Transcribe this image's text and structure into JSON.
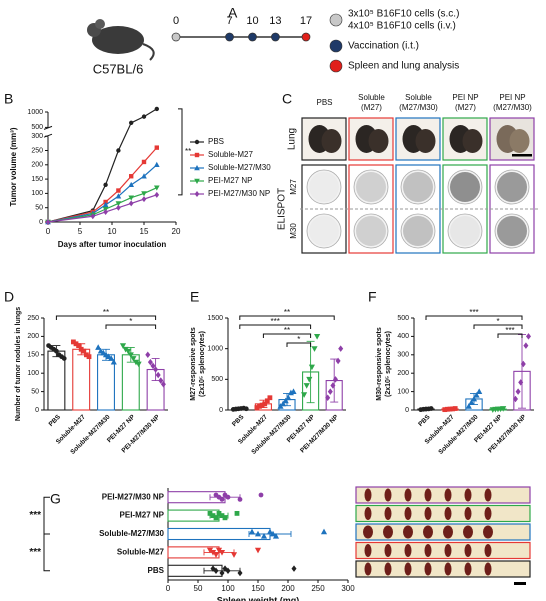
{
  "schematic": {
    "panel_label": "A",
    "strain": "C57BL/6",
    "days": [
      0,
      7,
      10,
      13,
      17
    ],
    "day_colors": [
      "#c8c8c8",
      "#1f3a68",
      "#1f3a68",
      "#1f3a68",
      "#e0201b"
    ],
    "legend": [
      {
        "lines": [
          "3x10⁵ B16F10 cells (s.c.)",
          "4x10⁵ B16F10 cells (i.v.)"
        ],
        "color": "#c8c8c8"
      },
      {
        "lines": [
          "Vaccination (i.t.)"
        ],
        "color": "#1f3a68"
      },
      {
        "lines": [
          "Spleen and lung analysis"
        ],
        "color": "#e0201b"
      }
    ]
  },
  "image_grid": {
    "panel_label": "C",
    "columns": [
      [
        "PBS"
      ],
      [
        "Soluble",
        "(M27)"
      ],
      [
        "Soluble",
        "(M27/M30)"
      ],
      [
        "PEI NP",
        "(M27)"
      ],
      [
        "PEI NP",
        "(M27/M30)"
      ]
    ],
    "column_colors": [
      "#222222",
      "#e53935",
      "#1e73be",
      "#2ea84a",
      "#8e3fa8"
    ],
    "rows": [
      "Lung",
      "ELISPOT"
    ],
    "sub_rows": [
      "M27",
      "M30"
    ]
  },
  "chart_data": [
    {
      "type": "line",
      "panel_label": "B",
      "x_label": "Days after tumor inoculation",
      "y_label": [
        "Tumor volume (mm³)"
      ],
      "x": [
        0,
        7,
        9,
        11,
        13,
        15,
        17
      ],
      "xlim": [
        0,
        20
      ],
      "xticks": [
        0,
        5,
        10,
        15,
        20
      ],
      "ylim": [
        0,
        1000
      ],
      "ybreak": [
        300,
        500
      ],
      "yticks": [
        0,
        50,
        100,
        150,
        200,
        250,
        300,
        500,
        1000
      ],
      "significance": [
        "**"
      ],
      "series": [
        {
          "name": "PBS",
          "color": "#222222",
          "values": [
            0,
            40,
            130,
            250,
            650,
            850,
            1100
          ]
        },
        {
          "name": "Soluble-M27",
          "color": "#e53935",
          "values": [
            0,
            35,
            70,
            110,
            160,
            210,
            260
          ]
        },
        {
          "name": "Soluble-M27/M30",
          "color": "#1e73be",
          "values": [
            0,
            30,
            60,
            90,
            130,
            160,
            200
          ]
        },
        {
          "name": "PEI-M27 NP",
          "color": "#2ea84a",
          "values": [
            0,
            25,
            45,
            65,
            85,
            100,
            120
          ]
        },
        {
          "name": "PEI-M27/M30 NP",
          "color": "#8e3fa8",
          "values": [
            0,
            20,
            35,
            50,
            65,
            80,
            95
          ]
        }
      ]
    },
    {
      "type": "bar",
      "panel_label": "D",
      "y_label": [
        "Number of tumor nodules in lungs"
      ],
      "categories": [
        "PBS",
        "Soluble-M27",
        "Soluble-M27/M30",
        "PEI-M27 NP",
        "PEI-M27/M30 NP"
      ],
      "colors": [
        "#222222",
        "#e53935",
        "#1e73be",
        "#2ea84a",
        "#8e3fa8"
      ],
      "values": [
        160,
        165,
        150,
        150,
        110
      ],
      "errors": [
        15,
        15,
        15,
        20,
        30
      ],
      "points": [
        [
          175,
          170,
          165,
          160,
          150,
          145,
          140
        ],
        [
          185,
          180,
          175,
          165,
          160,
          150,
          145
        ],
        [
          170,
          160,
          155,
          150,
          145,
          140,
          130
        ],
        [
          175,
          165,
          160,
          150,
          140,
          130,
          125
        ],
        [
          150,
          130,
          120,
          110,
          95,
          80,
          70
        ]
      ],
      "ylim": [
        0,
        250
      ],
      "yticks": [
        0,
        50,
        100,
        150,
        200,
        250
      ],
      "significance": [
        "**",
        "*"
      ]
    },
    {
      "type": "bar",
      "panel_label": "E",
      "y_label": [
        "M27-responsive spots",
        "(2x10⁵ splenocytes)"
      ],
      "categories": [
        "PBS",
        "Soluble-M27",
        "Soluble-M27/M30",
        "PEI-M27 NP",
        "PEI-M27/M30 NP"
      ],
      "colors": [
        "#222222",
        "#e53935",
        "#1e73be",
        "#2ea84a",
        "#8e3fa8"
      ],
      "values": [
        20,
        100,
        170,
        620,
        480
      ],
      "errors": [
        10,
        60,
        100,
        500,
        350
      ],
      "points": [
        [
          10,
          15,
          20,
          25,
          30,
          20
        ],
        [
          40,
          60,
          80,
          100,
          150,
          200
        ],
        [
          60,
          100,
          150,
          200,
          280,
          300
        ],
        [
          250,
          400,
          500,
          700,
          1000,
          1200
        ],
        [
          200,
          300,
          400,
          500,
          800,
          1000
        ]
      ],
      "ylim": [
        0,
        1500
      ],
      "yticks": [
        0,
        500,
        1000,
        1500
      ],
      "significance": [
        "**",
        "***",
        "**",
        "*"
      ]
    },
    {
      "type": "bar",
      "panel_label": "F",
      "y_label": [
        "M30-responsive spots",
        "(2x10⁵ splenocytes)"
      ],
      "categories": [
        "PBS",
        "Soluble-M27",
        "Soluble-M27/M30",
        "PEI-M27 NP",
        "PEI-M27/M30 NP"
      ],
      "colors": [
        "#222222",
        "#e53935",
        "#1e73be",
        "#2ea84a",
        "#8e3fa8"
      ],
      "values": [
        5,
        5,
        60,
        5,
        210
      ],
      "errors": [
        3,
        3,
        30,
        3,
        200
      ],
      "points": [
        [
          2,
          4,
          5,
          6,
          8
        ],
        [
          2,
          4,
          5,
          6,
          8
        ],
        [
          20,
          40,
          60,
          80,
          100
        ],
        [
          2,
          4,
          5,
          6,
          8
        ],
        [
          60,
          100,
          150,
          250,
          350,
          400
        ]
      ],
      "ylim": [
        0,
        500
      ],
      "yticks": [
        0,
        100,
        200,
        300,
        400,
        500
      ],
      "significance": [
        "***",
        "*",
        "***"
      ]
    },
    {
      "type": "hbar",
      "panel_label": "G",
      "x_label": "Spleen weight (mg)",
      "categories": [
        "PEI-M27/M30 NP",
        "PEI-M27 NP",
        "Soluble-M27/M30",
        "Soluble-M27",
        "PBS"
      ],
      "colors": [
        "#8e3fa8",
        "#2ea84a",
        "#1e73be",
        "#e53935",
        "#222222"
      ],
      "values": [
        95,
        85,
        170,
        85,
        90
      ],
      "errors": [
        25,
        15,
        35,
        25,
        30
      ],
      "points": [
        [
          80,
          85,
          90,
          95,
          100,
          120,
          155
        ],
        [
          70,
          75,
          80,
          85,
          90,
          95,
          115
        ],
        [
          140,
          150,
          160,
          170,
          175,
          180,
          260
        ],
        [
          70,
          75,
          80,
          85,
          90,
          110,
          150
        ],
        [
          75,
          80,
          90,
          95,
          100,
          120,
          210
        ]
      ],
      "xlim": [
        0,
        300
      ],
      "xticks": [
        0,
        50,
        100,
        150,
        200,
        250,
        300
      ],
      "significance": [
        "***",
        "***"
      ]
    }
  ]
}
